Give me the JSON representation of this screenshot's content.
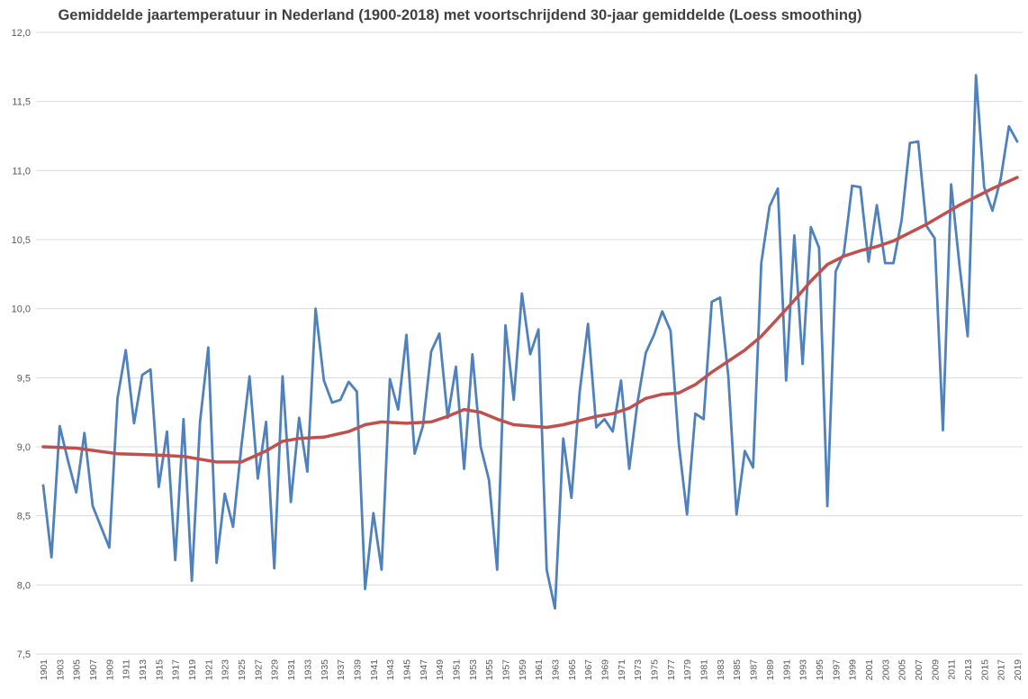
{
  "chart_data": {
    "type": "line",
    "title": "Gemiddelde jaartemperatuur in Nederland (1900-2018) met voortschrijdend 30-jaar gemiddelde (Loess smoothing)",
    "ylabel": "",
    "xlabel": "",
    "ylim": [
      7.5,
      12.0
    ],
    "yticks": [
      "7,5",
      "8,0",
      "8,5",
      "9,0",
      "9,5",
      "10,0",
      "10,5",
      "11,0",
      "11,5",
      "12,0"
    ],
    "grid": true,
    "legend": "none",
    "x_first": 1901,
    "x_last": 2019,
    "x_tick_step": 2,
    "colors": {
      "annual": "#4f81bd",
      "smoothed": "#c0504d",
      "grid": "#d9d9d9"
    },
    "series": [
      {
        "key": "annual",
        "x": [
          1901,
          1902,
          1903,
          1904,
          1905,
          1906,
          1907,
          1908,
          1909,
          1910,
          1911,
          1912,
          1913,
          1914,
          1915,
          1916,
          1917,
          1918,
          1919,
          1920,
          1921,
          1922,
          1923,
          1924,
          1925,
          1926,
          1927,
          1928,
          1929,
          1930,
          1931,
          1932,
          1933,
          1934,
          1935,
          1936,
          1937,
          1938,
          1939,
          1940,
          1941,
          1942,
          1943,
          1944,
          1945,
          1946,
          1947,
          1948,
          1949,
          1950,
          1951,
          1952,
          1953,
          1954,
          1955,
          1956,
          1957,
          1958,
          1959,
          1960,
          1961,
          1962,
          1963,
          1964,
          1965,
          1966,
          1967,
          1968,
          1969,
          1970,
          1971,
          1972,
          1973,
          1974,
          1975,
          1976,
          1977,
          1978,
          1979,
          1980,
          1981,
          1982,
          1983,
          1984,
          1985,
          1986,
          1987,
          1988,
          1989,
          1990,
          1991,
          1992,
          1993,
          1994,
          1995,
          1996,
          1997,
          1998,
          1999,
          2000,
          2001,
          2002,
          2003,
          2004,
          2005,
          2006,
          2007,
          2008,
          2009,
          2010,
          2011,
          2012,
          2013,
          2014,
          2015,
          2016,
          2017,
          2018,
          2019
        ],
        "values": [
          8.72,
          8.2,
          9.15,
          8.9,
          8.67,
          9.1,
          8.57,
          8.42,
          8.27,
          9.35,
          9.7,
          9.17,
          9.52,
          9.56,
          8.71,
          9.11,
          8.18,
          9.2,
          8.03,
          9.18,
          9.72,
          8.16,
          8.66,
          8.42,
          9.0,
          9.51,
          8.77,
          9.18,
          8.12,
          9.51,
          8.6,
          9.21,
          8.82,
          10.0,
          9.48,
          9.32,
          9.34,
          9.47,
          9.4,
          7.97,
          8.52,
          8.11,
          9.49,
          9.27,
          9.81,
          8.95,
          9.15,
          9.69,
          9.82,
          9.21,
          9.58,
          8.84,
          9.67,
          9.0,
          8.76,
          8.11,
          9.88,
          9.34,
          10.11,
          9.67,
          9.85,
          8.11,
          7.83,
          9.06,
          8.63,
          9.4,
          9.89,
          9.14,
          9.2,
          9.11,
          9.48,
          8.84,
          9.32,
          9.68,
          9.81,
          9.98,
          9.84,
          9.02,
          8.51,
          9.24,
          9.2,
          10.05,
          10.08,
          9.51,
          8.51,
          8.97,
          8.85,
          10.33,
          10.74,
          10.87,
          9.48,
          10.53,
          9.6,
          10.59,
          10.44,
          8.57,
          10.27,
          10.4,
          10.89,
          10.88,
          10.34,
          10.75,
          10.33,
          10.33,
          10.64,
          11.2,
          11.21,
          10.6,
          10.51,
          9.12,
          10.9,
          10.32,
          9.8,
          11.69,
          10.88,
          10.71,
          10.94,
          11.32,
          11.21
        ]
      },
      {
        "key": "smoothed",
        "x": [
          1901,
          1905,
          1910,
          1915,
          1918,
          1920,
          1922,
          1925,
          1928,
          1930,
          1932,
          1935,
          1938,
          1940,
          1942,
          1945,
          1948,
          1950,
          1952,
          1954,
          1956,
          1958,
          1960,
          1962,
          1964,
          1966,
          1968,
          1970,
          1972,
          1974,
          1976,
          1978,
          1980,
          1982,
          1984,
          1986,
          1988,
          1990,
          1992,
          1994,
          1996,
          1998,
          2000,
          2002,
          2004,
          2006,
          2008,
          2010,
          2012,
          2014,
          2016,
          2019
        ],
        "values": [
          9.0,
          8.99,
          8.95,
          8.94,
          8.93,
          8.91,
          8.89,
          8.89,
          8.97,
          9.04,
          9.06,
          9.07,
          9.11,
          9.16,
          9.18,
          9.17,
          9.18,
          9.22,
          9.27,
          9.25,
          9.2,
          9.16,
          9.15,
          9.14,
          9.16,
          9.19,
          9.22,
          9.24,
          9.28,
          9.35,
          9.38,
          9.39,
          9.45,
          9.54,
          9.62,
          9.7,
          9.8,
          9.93,
          10.06,
          10.2,
          10.32,
          10.38,
          10.42,
          10.45,
          10.49,
          10.55,
          10.61,
          10.68,
          10.75,
          10.81,
          10.87,
          10.95
        ]
      }
    ]
  }
}
